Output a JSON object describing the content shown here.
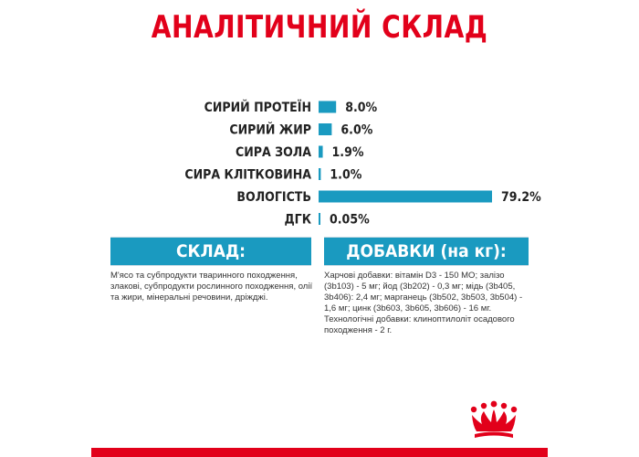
{
  "page": {
    "title": "АНАЛІТИЧНИЙ СКЛАД",
    "accent_red": "#e2001a",
    "accent_blue": "#1a9ac0"
  },
  "chart_data": {
    "type": "bar",
    "orientation": "horizontal",
    "title": "АНАЛІТИЧНИЙ СКЛАД",
    "categories": [
      "СИРИЙ ПРОТЕЇН",
      "СИРИЙ ЖИР",
      "СИРА ЗОЛА",
      "СИРА КЛІТКОВИНА",
      "ВОЛОГІСТЬ",
      "ДГК"
    ],
    "values": [
      8.0,
      6.0,
      1.9,
      1.0,
      79.2,
      0.05
    ],
    "value_labels": [
      "8.0%",
      "6.0%",
      "1.9%",
      "1.0%",
      "79.2%",
      "0.05%"
    ],
    "unit": "%",
    "xlim": [
      0,
      79.2
    ],
    "bar_color": "#1a9ac0",
    "grid": false,
    "legend": "none"
  },
  "composition": {
    "heading": "СКЛАД:",
    "text": "М'ясо та субпродукти тваринного походження, злакові, субпродукти рослинного походження, олії та жири, мінеральні речовини, дріжджі."
  },
  "additives": {
    "heading": "ДОБАВКИ (на кг):",
    "text": "Харчові добавки: вітамін D3 - 150 МО; залізо (3b103) - 5 мг; йод (3b202) - 0,3 мг; мідь (3b405, 3b406): 2,4 мг; марганець (3b502, 3b503, 3b504) - 1,6 мг; цинк (3b603, 3b605, 3b606) - 16 мг. Технологічні добавки: клиноптилоліт осадового походження - 2 г."
  },
  "logo": {
    "icon": "crown-icon",
    "color": "#e2001a"
  }
}
